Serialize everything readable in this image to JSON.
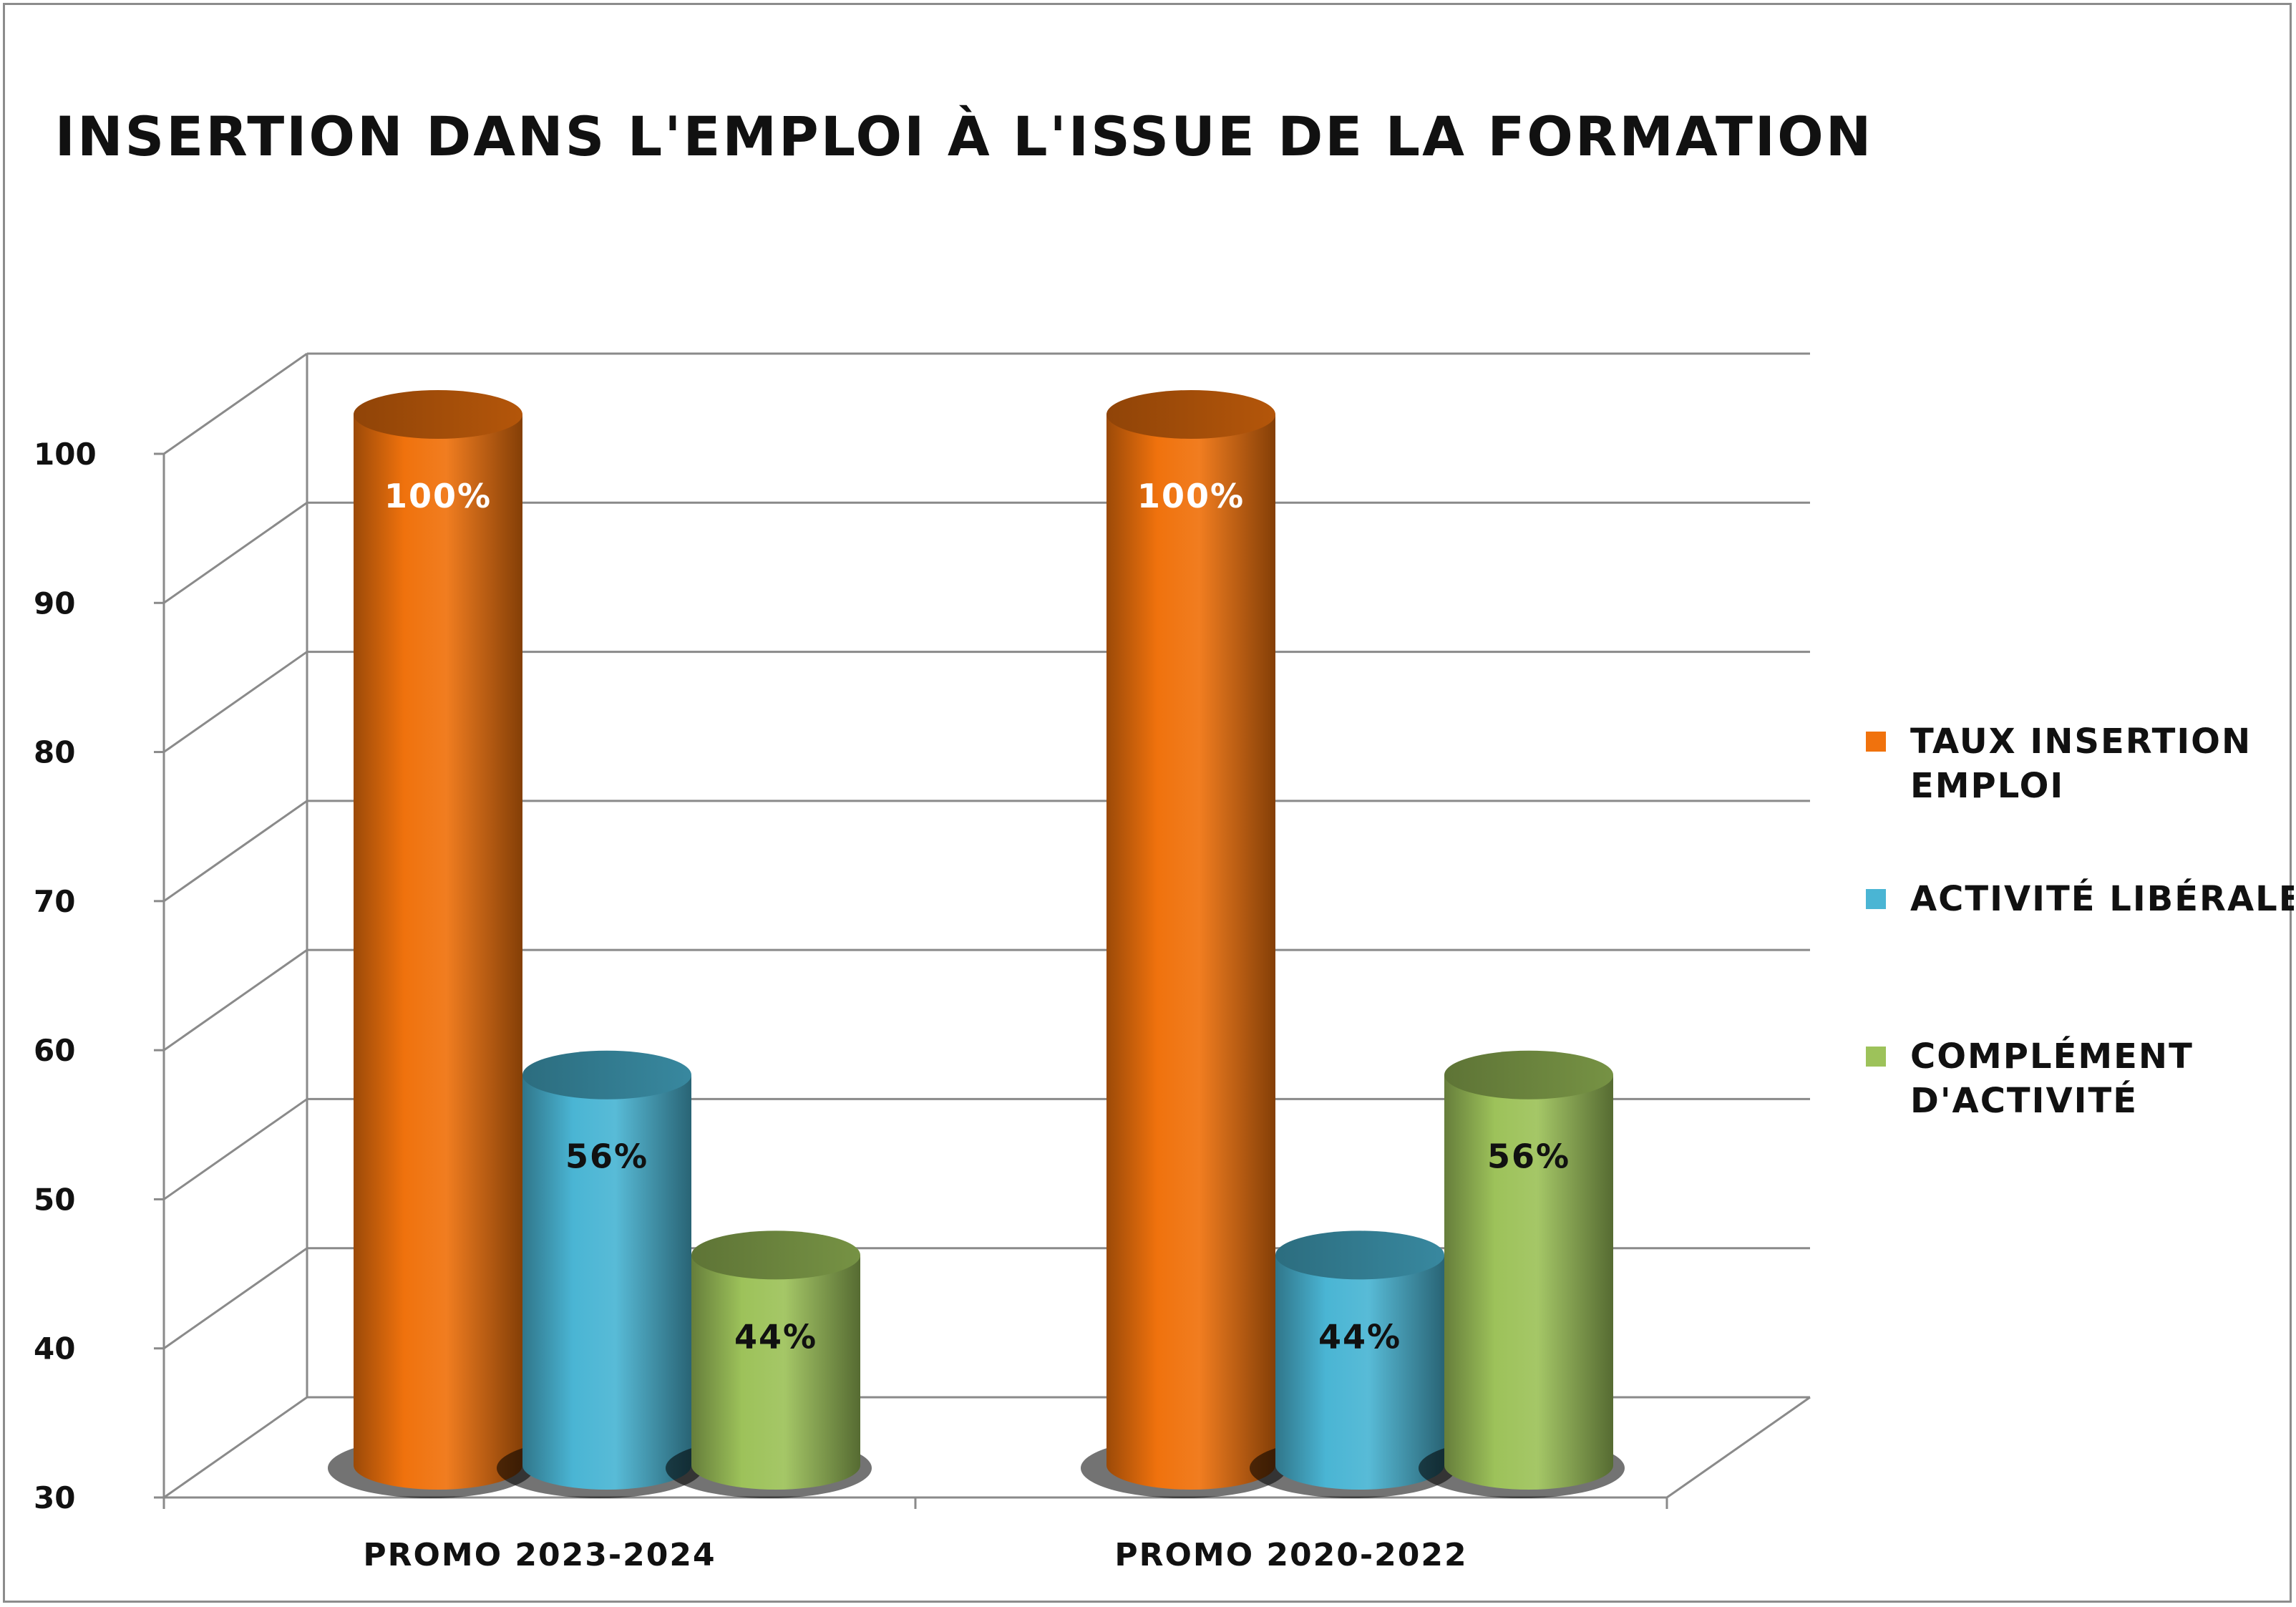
{
  "chart_data": {
    "type": "bar",
    "title": "INSERTION DANS L'EMPLOI À L'ISSUE DE LA FORMATION",
    "xlabel": "",
    "ylabel": "",
    "ylim": [
      30,
      100
    ],
    "yticks": [
      "30",
      "40",
      "50",
      "60",
      "70",
      "80",
      "90",
      "100"
    ],
    "ytick_values": [
      30,
      40,
      50,
      60,
      70,
      80,
      90,
      100
    ],
    "categories": [
      "PROMO 2023-2024",
      "PROMO 2020-2022"
    ],
    "series": [
      {
        "name": "TAUX INSERTION EMPLOI",
        "legend_lines": [
          "TAUX INSERTION",
          "EMPLOI"
        ],
        "values": [
          100,
          100
        ],
        "labels": [
          "100%",
          "100%"
        ],
        "color": "#f0720d",
        "label_color": "#ffffff"
      },
      {
        "name": "ACTIVITÉ LIBÉRALE",
        "legend_lines": [
          "ACTIVITÉ LIBÉRALE"
        ],
        "values": [
          56,
          44
        ],
        "labels": [
          "56%",
          "44%"
        ],
        "color": "#4ab5d4",
        "label_color": "#111111"
      },
      {
        "name": "COMPLÉMENT D'ACTIVITÉ",
        "legend_lines": [
          "COMPLÉMENT",
          "D'ACTIVITÉ"
        ],
        "values": [
          44,
          56
        ],
        "labels": [
          "44%",
          "56%"
        ],
        "color": "#9dc25a",
        "label_color": "#111111"
      }
    ],
    "style": "3d-cylinder",
    "grid": true,
    "legend_position": "right"
  }
}
